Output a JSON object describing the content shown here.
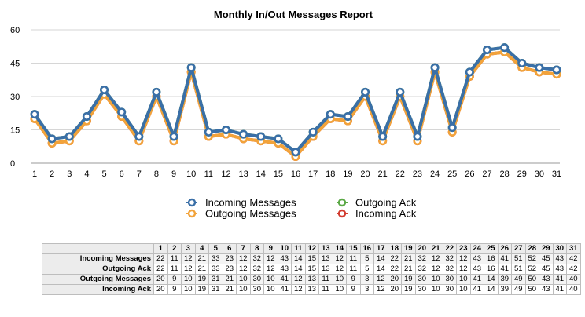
{
  "chart_data": {
    "type": "line",
    "title": "Monthly In/Out Messages Report",
    "x": [
      1,
      2,
      3,
      4,
      5,
      6,
      7,
      8,
      9,
      10,
      11,
      12,
      13,
      14,
      15,
      16,
      17,
      18,
      19,
      20,
      21,
      22,
      23,
      24,
      25,
      26,
      27,
      28,
      29,
      30,
      31
    ],
    "ylim": [
      0,
      60
    ],
    "yticks": [
      0,
      15,
      30,
      45,
      60
    ],
    "grid": true,
    "legend": "bottom",
    "series": [
      {
        "name": "Incoming Messages",
        "color": "#3a6fa7",
        "values": [
          22,
          11,
          12,
          21,
          33,
          23,
          12,
          32,
          12,
          43,
          14,
          15,
          13,
          12,
          11,
          5,
          14,
          22,
          21,
          32,
          12,
          32,
          12,
          43,
          16,
          41,
          51,
          52,
          45,
          43,
          42
        ]
      },
      {
        "name": "Outgoing Ack",
        "color": "#5aa845",
        "values": [
          22,
          11,
          12,
          21,
          33,
          23,
          12,
          32,
          12,
          43,
          14,
          15,
          13,
          12,
          11,
          5,
          14,
          22,
          21,
          32,
          12,
          32,
          12,
          43,
          16,
          41,
          51,
          52,
          45,
          43,
          42
        ]
      },
      {
        "name": "Outgoing Messages",
        "color": "#f2a33a",
        "values": [
          20,
          9,
          10,
          19,
          31,
          21,
          10,
          30,
          10,
          41,
          12,
          13,
          11,
          10,
          9,
          3,
          12,
          20,
          19,
          30,
          10,
          30,
          10,
          41,
          14,
          39,
          49,
          50,
          43,
          41,
          40
        ]
      },
      {
        "name": "Incoming Ack",
        "color": "#d23a2e",
        "values": [
          20,
          9,
          10,
          19,
          31,
          21,
          10,
          30,
          10,
          41,
          12,
          13,
          11,
          10,
          9,
          3,
          12,
          20,
          19,
          30,
          10,
          30,
          10,
          41,
          14,
          39,
          49,
          50,
          43,
          41,
          40
        ]
      }
    ],
    "draw_order": [
      3,
      2,
      1,
      0
    ]
  }
}
